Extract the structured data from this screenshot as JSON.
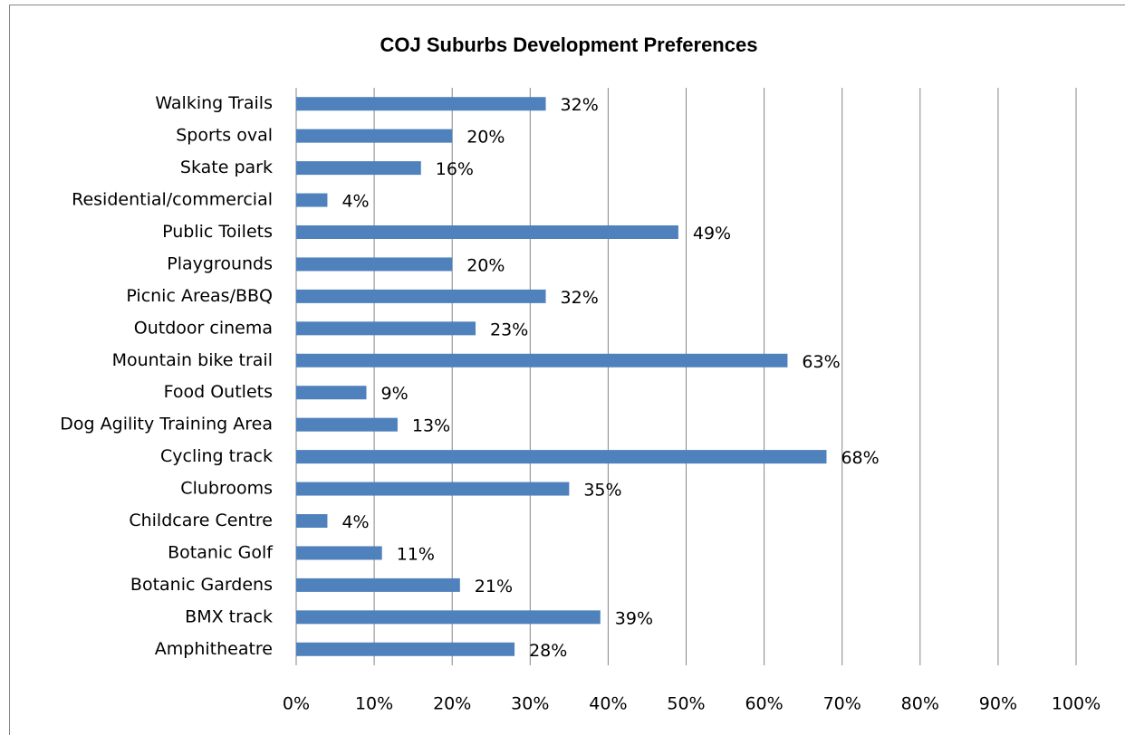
{
  "chart_data": {
    "type": "bar",
    "orientation": "horizontal",
    "title": "COJ Suburbs Development Preferences",
    "categories": [
      "Walking Trails",
      "Sports oval",
      "Skate park",
      "Residential/commercial",
      "Public Toilets",
      "Playgrounds",
      "Picnic Areas/BBQ",
      "Outdoor cinema",
      "Mountain bike trail",
      "Food Outlets",
      "Dog Agility Training Area",
      "Cycling track",
      "Clubrooms",
      "Childcare Centre",
      "Botanic Golf",
      "Botanic Gardens",
      "BMX track",
      "Amphitheatre"
    ],
    "values": [
      32,
      20,
      16,
      4,
      49,
      20,
      32,
      23,
      63,
      9,
      13,
      68,
      35,
      4,
      11,
      21,
      39,
      28
    ],
    "value_labels": [
      "32%",
      "20%",
      "16%",
      "4%",
      "49%",
      "20%",
      "32%",
      "23%",
      "63%",
      "9%",
      "13%",
      "68%",
      "35%",
      "4%",
      "11%",
      "21%",
      "39%",
      "28%"
    ],
    "color": "#4f81bd",
    "xlim": [
      0,
      100
    ],
    "xticks": [
      {
        "value": 0,
        "label": "0%"
      },
      {
        "value": 10,
        "label": "10%"
      },
      {
        "value": 20,
        "label": "20%"
      },
      {
        "value": 30,
        "label": "30%"
      },
      {
        "value": 40,
        "label": "40%"
      },
      {
        "value": 50,
        "label": "50%"
      },
      {
        "value": 60,
        "label": "60%"
      },
      {
        "value": 70,
        "label": "70%"
      },
      {
        "value": 80,
        "label": "80%"
      },
      {
        "value": 90,
        "label": "90%"
      },
      {
        "value": 100,
        "label": "100%"
      }
    ],
    "grid": true
  }
}
